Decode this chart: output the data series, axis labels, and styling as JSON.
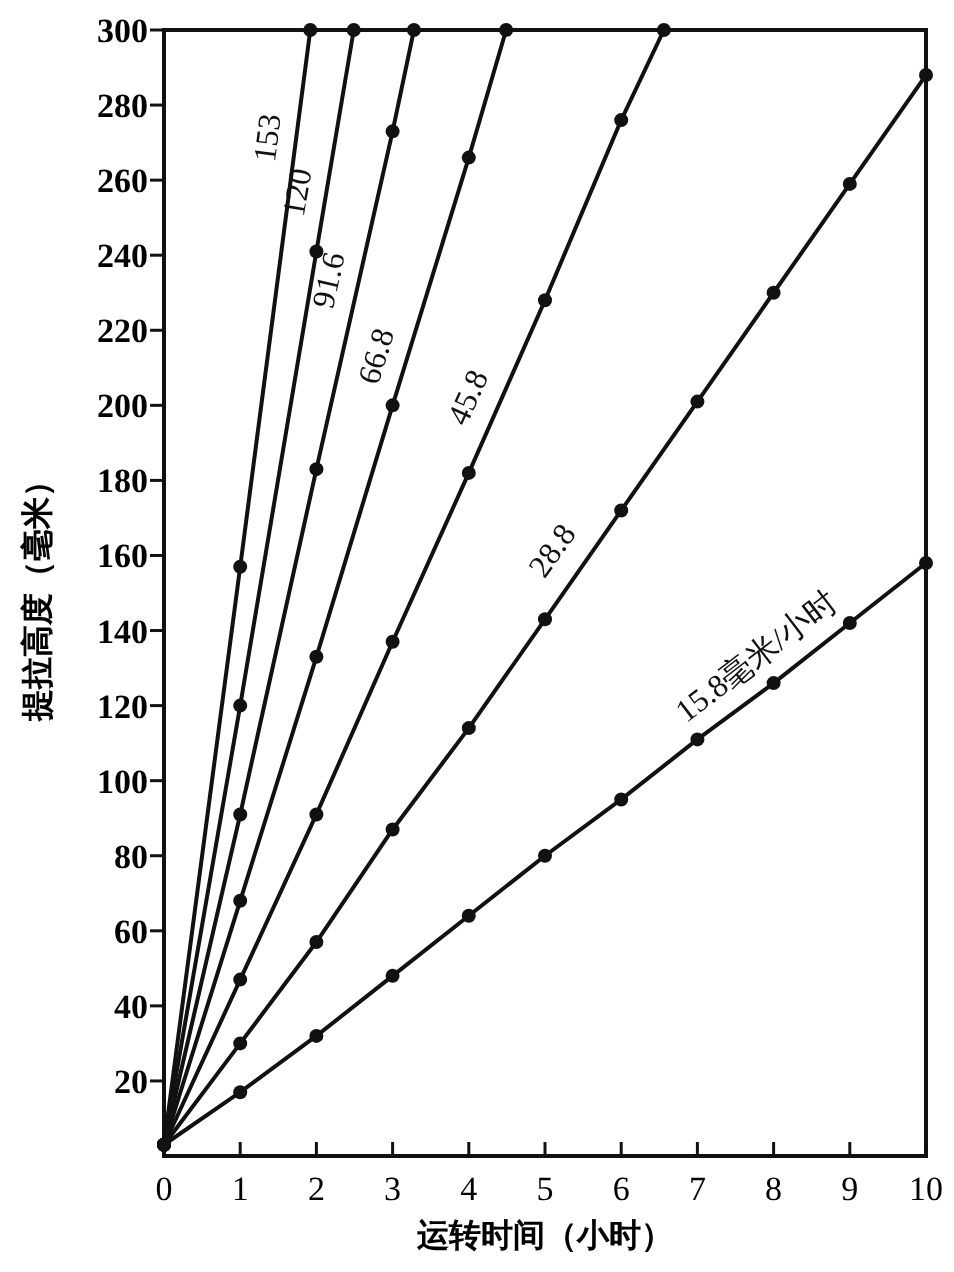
{
  "chart_data": {
    "type": "line",
    "xlabel": "运转时间（小时）",
    "ylabel": "提拉高度（毫米）",
    "xlim": [
      0,
      10
    ],
    "ylim": [
      0,
      300
    ],
    "xticks": [
      0,
      1,
      2,
      3,
      4,
      5,
      6,
      7,
      8,
      9,
      10
    ],
    "yticks": [
      20,
      40,
      60,
      80,
      100,
      120,
      140,
      160,
      180,
      200,
      220,
      240,
      260,
      280,
      300
    ],
    "grid": false,
    "marker": "circle",
    "line_style": "solid",
    "series": [
      {
        "name": "153",
        "color": "#111111",
        "x": [
          0,
          1,
          1.92
        ],
        "values": [
          3,
          157,
          300
        ]
      },
      {
        "name": "120",
        "color": "#111111",
        "x": [
          0,
          1,
          2,
          2.49
        ],
        "values": [
          3,
          120,
          241,
          300
        ]
      },
      {
        "name": "91.6",
        "color": "#111111",
        "x": [
          0,
          1,
          2,
          3,
          3.28
        ],
        "values": [
          3,
          91,
          183,
          273,
          300
        ]
      },
      {
        "name": "66.8",
        "color": "#111111",
        "x": [
          0,
          1,
          2,
          3,
          4,
          4.49
        ],
        "values": [
          3,
          68,
          133,
          200,
          266,
          300
        ]
      },
      {
        "name": "45.8",
        "color": "#111111",
        "x": [
          0,
          1,
          2,
          3,
          4,
          5,
          6,
          6.56
        ],
        "values": [
          3,
          47,
          91,
          137,
          182,
          228,
          276,
          300
        ]
      },
      {
        "name": "28.8",
        "color": "#111111",
        "x": [
          0,
          1,
          2,
          3,
          4,
          5,
          6,
          7,
          8,
          9,
          10
        ],
        "values": [
          3,
          30,
          57,
          87,
          114,
          143,
          172,
          201,
          230,
          259,
          288
        ]
      },
      {
        "name": "15.8毫米/小时",
        "color": "#111111",
        "x": [
          0,
          1,
          2,
          3,
          4,
          5,
          6,
          7,
          8,
          9,
          10
        ],
        "values": [
          3,
          17,
          32,
          48,
          64,
          80,
          95,
          111,
          126,
          142,
          158
        ]
      }
    ]
  }
}
